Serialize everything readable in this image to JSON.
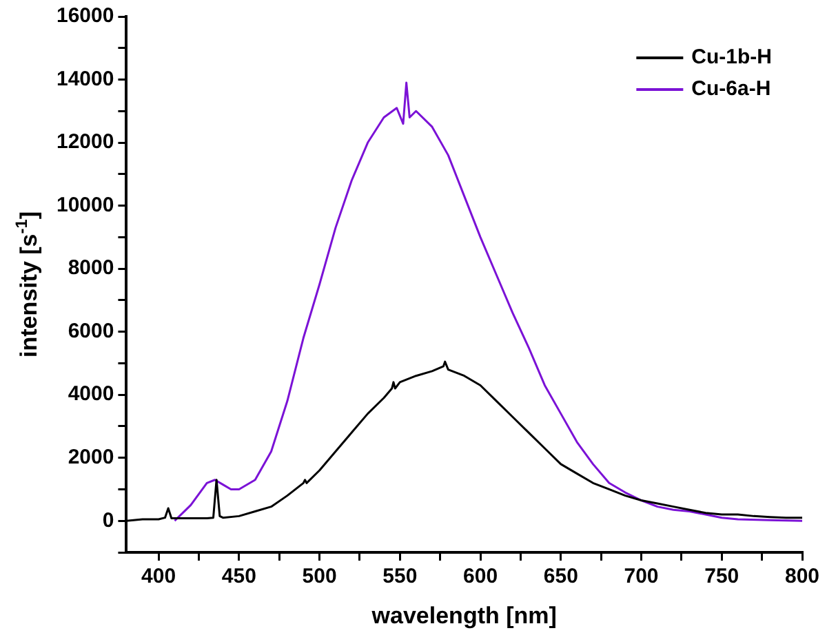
{
  "chart_data": {
    "type": "line",
    "xlabel": "wavelength [nm]",
    "ylabel": "intensity [s$^{-1}$]",
    "legend": "top right",
    "marker": "none",
    "line_style": "solid",
    "grid": false,
    "xlim": [
      380,
      800
    ],
    "ylim": [
      -1000,
      16000
    ],
    "xticks": [
      400,
      {
        "value": 425,
        "label": null
      },
      450,
      {
        "value": 475,
        "label": null
      },
      500,
      {
        "value": 525,
        "label": null
      },
      550,
      {
        "value": 575,
        "label": null
      },
      600,
      {
        "value": 625,
        "label": null
      },
      650,
      {
        "value": 675,
        "label": null
      },
      700,
      {
        "value": 725,
        "label": null
      },
      750,
      {
        "value": 775,
        "label": null
      },
      800
    ],
    "yticks": [
      {
        "value": -1000,
        "label": null
      },
      0,
      {
        "value": 1000,
        "label": null
      },
      2000,
      {
        "value": 3000,
        "label": null
      },
      4000,
      {
        "value": 5000,
        "label": null
      },
      6000,
      {
        "value": 7000,
        "label": null
      },
      8000,
      {
        "value": 9000,
        "label": null
      },
      10000,
      {
        "value": 11000,
        "label": null
      },
      12000,
      {
        "value": 13000,
        "label": null
      },
      14000,
      {
        "value": 15000,
        "label": null
      },
      16000
    ],
    "series": [
      {
        "name": "Cu-1b-H",
        "color": "#000000",
        "x": [
          380,
          390,
          400,
          404,
          406,
          408,
          420,
          430,
          434,
          436,
          438,
          440,
          450,
          460,
          470,
          480,
          490,
          491,
          492,
          500,
          510,
          520,
          530,
          540,
          545,
          546,
          547,
          550,
          560,
          570,
          577,
          578,
          580,
          590,
          600,
          610,
          620,
          630,
          640,
          650,
          660,
          670,
          680,
          690,
          700,
          710,
          720,
          730,
          740,
          750,
          760,
          770,
          780,
          790,
          800
        ],
        "values": [
          0,
          50,
          50,
          100,
          400,
          80,
          80,
          80,
          100,
          1300,
          150,
          100,
          150,
          300,
          450,
          800,
          1200,
          1300,
          1200,
          1600,
          2200,
          2800,
          3400,
          3900,
          4200,
          4400,
          4200,
          4400,
          4600,
          4750,
          4900,
          5050,
          4800,
          4600,
          4300,
          3800,
          3300,
          2800,
          2300,
          1800,
          1500,
          1200,
          1000,
          800,
          650,
          550,
          450,
          350,
          250,
          200,
          200,
          150,
          120,
          100,
          100
        ]
      },
      {
        "name": "Cu-6a-H",
        "color": "#7b12d6",
        "x": [
          410,
          420,
          430,
          435,
          440,
          445,
          450,
          460,
          470,
          480,
          490,
          500,
          510,
          520,
          530,
          540,
          548,
          552,
          554,
          556,
          560,
          570,
          580,
          590,
          600,
          610,
          620,
          630,
          640,
          650,
          660,
          670,
          680,
          690,
          700,
          710,
          720,
          730,
          740,
          750,
          760,
          780,
          800
        ],
        "values": [
          0,
          500,
          1200,
          1300,
          1150,
          1000,
          1000,
          1300,
          2200,
          3800,
          5800,
          7500,
          9300,
          10800,
          12000,
          12800,
          13100,
          12600,
          13900,
          12800,
          13000,
          12500,
          11600,
          10300,
          9000,
          7800,
          6600,
          5500,
          4300,
          3400,
          2500,
          1800,
          1200,
          900,
          650,
          450,
          350,
          300,
          200,
          100,
          50,
          20,
          0
        ]
      }
    ]
  }
}
